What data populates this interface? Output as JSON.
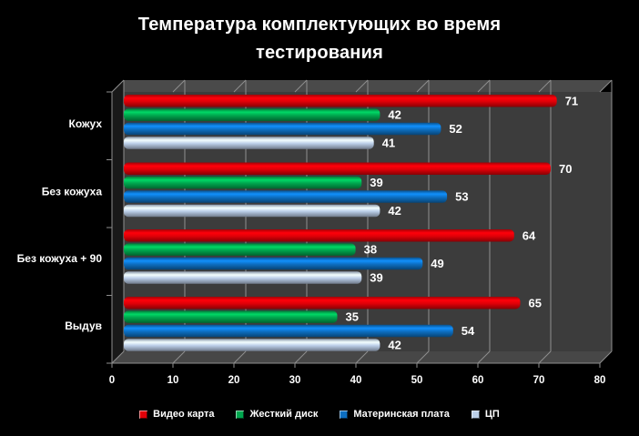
{
  "title": {
    "line1": "Температура комплектующих во время",
    "line2": "тестирования"
  },
  "canvas": {
    "background": "#000000",
    "plot_background": "#3c3c3c",
    "gridline_color": "#8f8f8f",
    "text_color": "#ffffff"
  },
  "chart_data": {
    "type": "bar",
    "orientation": "horizontal",
    "title": "Температура комплектующих во время тестирования",
    "categories": [
      "Кожух",
      "Без кожуха",
      "Без кожуха + 90",
      "Выдув"
    ],
    "series": [
      {
        "name": "Видео карта",
        "color": "#e10008",
        "values": [
          71,
          70,
          64,
          65
        ]
      },
      {
        "name": "Жесткий диск",
        "color": "#00a64e",
        "values": [
          42,
          39,
          38,
          35
        ]
      },
      {
        "name": "Материнская плата",
        "color": "#0d6fc2",
        "values": [
          52,
          53,
          49,
          54
        ]
      },
      {
        "name": "ЦП",
        "color": "#bccfe9",
        "values": [
          41,
          42,
          39,
          42
        ]
      }
    ],
    "xlim": [
      0,
      80
    ],
    "x_ticks": [
      0,
      10,
      20,
      30,
      40,
      50,
      60,
      70,
      80
    ],
    "grid": true,
    "value_labels": true,
    "legend_position": "bottom",
    "style": "3d"
  }
}
